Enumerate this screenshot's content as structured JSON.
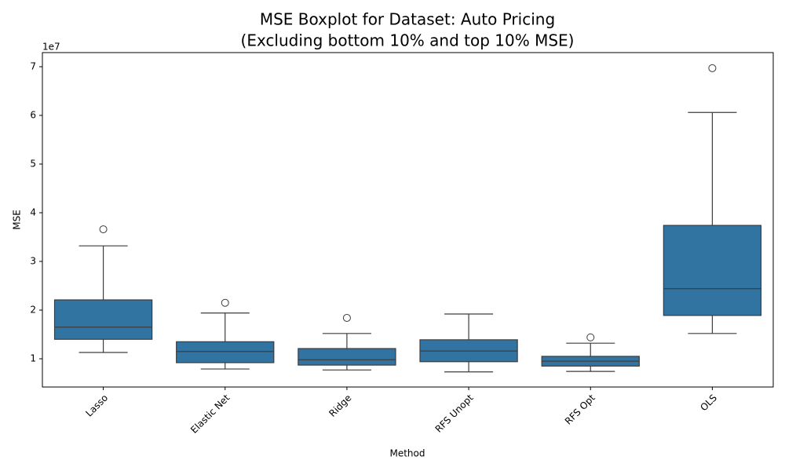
{
  "chart_data": {
    "type": "box",
    "title": "MSE Boxplot for Dataset: Auto Pricing",
    "subtitle": "(Excluding bottom 10% and top 10% MSE)",
    "x_label": "Method",
    "y_label": "MSE",
    "y_offset_label": "1e7",
    "color": "#3274a1",
    "categories": [
      "Lasso",
      "Elastic Net",
      "Ridge",
      "RFS Unopt",
      "RFS Opt",
      "OLS"
    ],
    "boxes": [
      {
        "whislo": 11300000,
        "q1": 14000000,
        "med": 16500000,
        "q3": 22100000,
        "whishi": 33200000,
        "fliers": [
          36600000
        ]
      },
      {
        "whislo": 7900000,
        "q1": 9200000,
        "med": 11500000,
        "q3": 13500000,
        "whishi": 19400000,
        "fliers": [
          21500000
        ]
      },
      {
        "whislo": 7700000,
        "q1": 8700000,
        "med": 9800000,
        "q3": 12100000,
        "whishi": 15200000,
        "fliers": [
          18400000
        ]
      },
      {
        "whislo": 7300000,
        "q1": 9400000,
        "med": 11600000,
        "q3": 13900000,
        "whishi": 19200000,
        "fliers": []
      },
      {
        "whislo": 7400000,
        "q1": 8500000,
        "med": 9500000,
        "q3": 10500000,
        "whishi": 13200000,
        "fliers": [
          14400000
        ]
      },
      {
        "whislo": 15200000,
        "q1": 18900000,
        "med": 24400000,
        "q3": 37400000,
        "whishi": 60600000,
        "fliers": [
          69700000
        ]
      }
    ],
    "ylim": [
      4200000,
      72900000
    ],
    "yticks": [
      {
        "value": 10000000,
        "label": "1"
      },
      {
        "value": 20000000,
        "label": "2"
      },
      {
        "value": 30000000,
        "label": "3"
      },
      {
        "value": 40000000,
        "label": "4"
      },
      {
        "value": 50000000,
        "label": "5"
      },
      {
        "value": 60000000,
        "label": "6"
      },
      {
        "value": 70000000,
        "label": "7"
      }
    ],
    "grid": false
  }
}
